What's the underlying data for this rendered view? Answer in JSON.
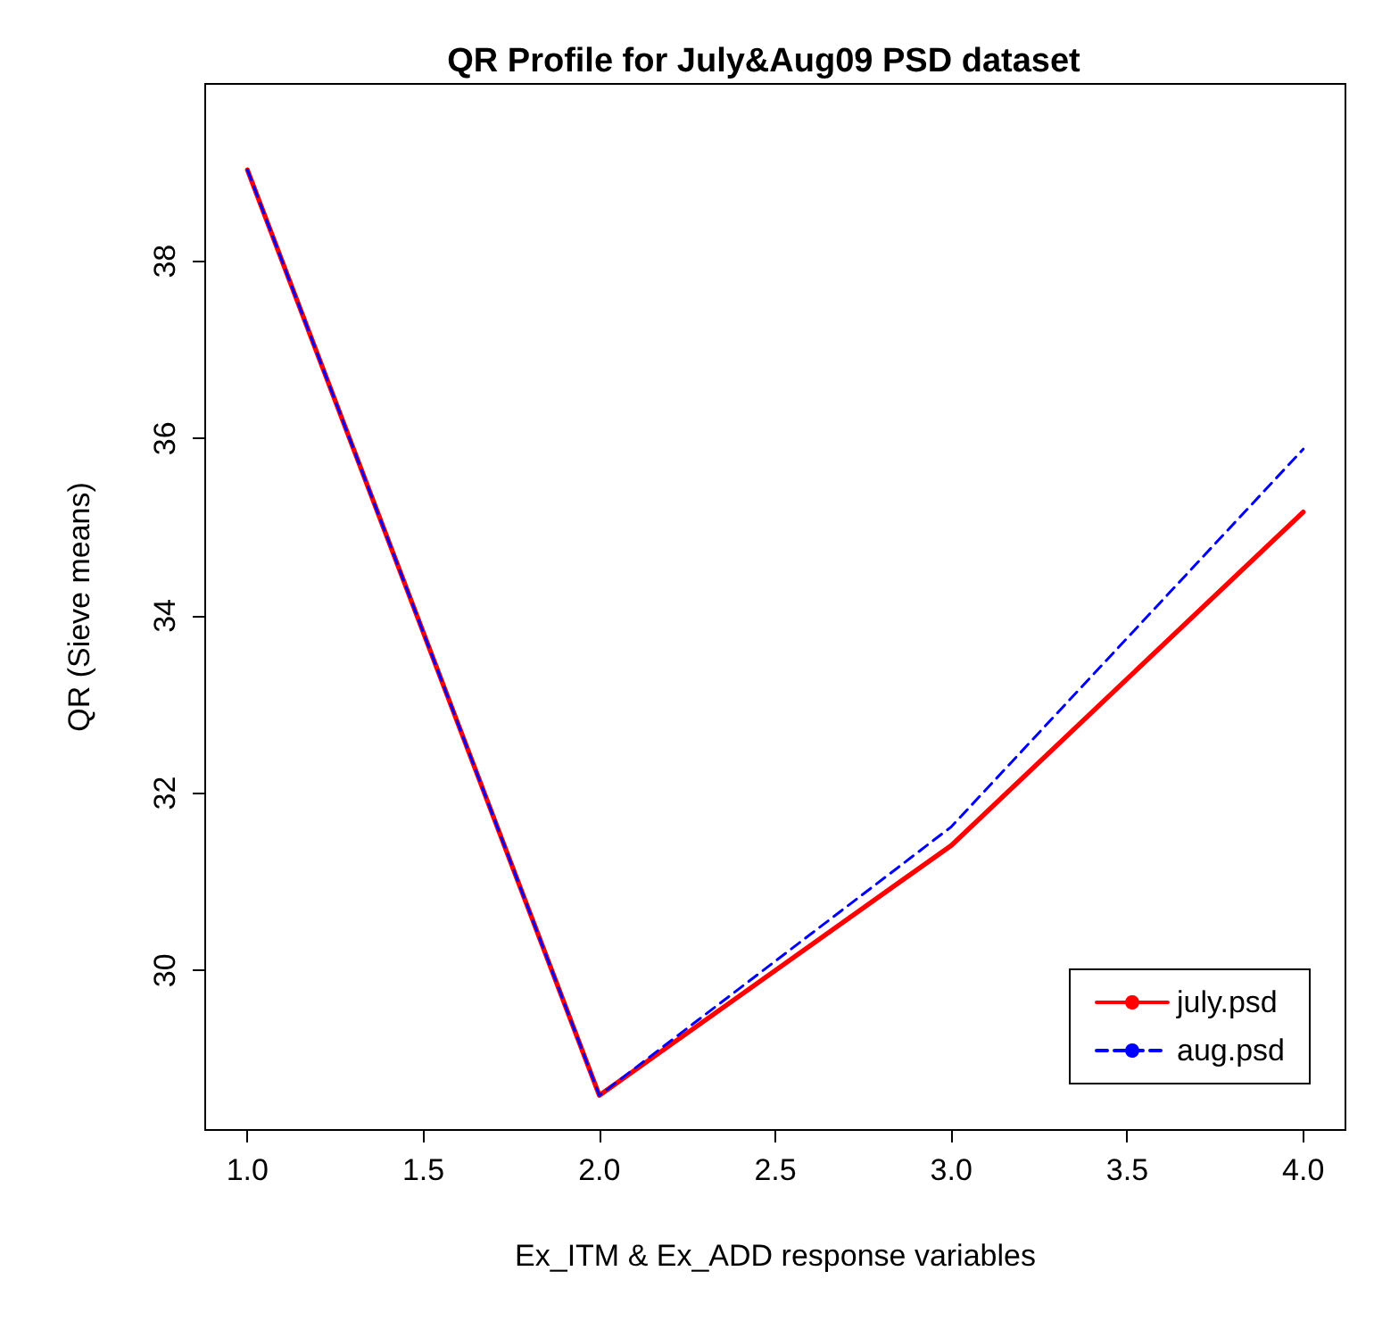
{
  "chart_data": {
    "type": "line",
    "title": "QR Profile for July&Aug09 PSD dataset",
    "xlabel": "Ex_ITM & Ex_ADD response variables",
    "ylabel": "QR (Sieve means)",
    "x": [
      1,
      2,
      3,
      4
    ],
    "series": [
      {
        "name": "july.psd",
        "color": "#ff0000",
        "line_style": "solid",
        "values": [
          39.03,
          28.59,
          31.41,
          35.17
        ]
      },
      {
        "name": "aug.psd",
        "color": "#0000ff",
        "line_style": "dashed",
        "values": [
          39.03,
          28.59,
          31.62,
          35.88
        ]
      }
    ],
    "xlim": [
      0.88,
      4.12
    ],
    "ylim": [
      28.2,
      40.0
    ],
    "xticks": [
      {
        "value": 1,
        "label": "1.0"
      },
      {
        "value": 1.5,
        "label": "1.5"
      },
      {
        "value": 2,
        "label": "2.0"
      },
      {
        "value": 2.5,
        "label": "2.5"
      },
      {
        "value": 3,
        "label": "3.0"
      },
      {
        "value": 3.5,
        "label": "3.5"
      },
      {
        "value": 4,
        "label": "4.0"
      }
    ],
    "yticks": [
      30,
      32,
      34,
      36,
      38
    ],
    "grid": false,
    "legend": "bottom right",
    "marker": "none"
  }
}
